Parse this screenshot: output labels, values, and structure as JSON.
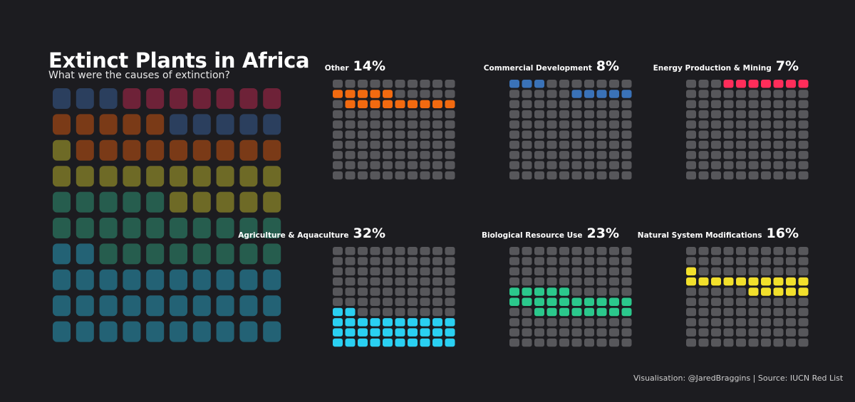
{
  "header": {
    "title": "Extinct Plants in Africa",
    "subtitle": "What were the causes of extinction?"
  },
  "footer": {
    "credit": "Visualisation: @JaredBraggins | Source: IUCN Red List"
  },
  "chart_data": [
    {
      "type": "waffle",
      "title": "Extinct Plants in Africa",
      "subtitle": "What were the causes of extinction?",
      "grid": "10 x 10",
      "categories": [
        {
          "name": "Other",
          "percent": 14,
          "color": "#f26a10",
          "muted": "#7a3a17"
        },
        {
          "name": "Commercial Development",
          "percent": 8,
          "color": "#3a72b8",
          "muted": "#2b3f5e"
        },
        {
          "name": "Energy Production & Mining",
          "percent": 7,
          "color": "#ff2d5a",
          "muted": "#6e2238"
        },
        {
          "name": "Agriculture & Aquaculture",
          "percent": 32,
          "color": "#2ad0f2",
          "muted": "#236275"
        },
        {
          "name": "Biological Resource Use",
          "percent": 23,
          "color": "#2bc88c",
          "muted": "#265d4e"
        },
        {
          "name": "Natural System Modifications",
          "percent": 16,
          "color": "#f2e02c",
          "muted": "#6e6a26"
        }
      ],
      "main_grid_rows": [
        [
          "Commercial Development",
          "Commercial Development",
          "Commercial Development",
          "Energy Production & Mining",
          "Energy Production & Mining",
          "Energy Production & Mining",
          "Energy Production & Mining",
          "Energy Production & Mining",
          "Energy Production & Mining",
          "Energy Production & Mining"
        ],
        [
          "Other",
          "Other",
          "Other",
          "Other",
          "Other",
          "Commercial Development",
          "Commercial Development",
          "Commercial Development",
          "Commercial Development",
          "Commercial Development"
        ],
        [
          "Natural System Modifications",
          "Other",
          "Other",
          "Other",
          "Other",
          "Other",
          "Other",
          "Other",
          "Other",
          "Other"
        ],
        [
          "Natural System Modifications",
          "Natural System Modifications",
          "Natural System Modifications",
          "Natural System Modifications",
          "Natural System Modifications",
          "Natural System Modifications",
          "Natural System Modifications",
          "Natural System Modifications",
          "Natural System Modifications",
          "Natural System Modifications"
        ],
        [
          "Biological Resource Use",
          "Biological Resource Use",
          "Biological Resource Use",
          "Biological Resource Use",
          "Biological Resource Use",
          "Natural System Modifications",
          "Natural System Modifications",
          "Natural System Modifications",
          "Natural System Modifications",
          "Natural System Modifications"
        ],
        [
          "Biological Resource Use",
          "Biological Resource Use",
          "Biological Resource Use",
          "Biological Resource Use",
          "Biological Resource Use",
          "Biological Resource Use",
          "Biological Resource Use",
          "Biological Resource Use",
          "Biological Resource Use",
          "Biological Resource Use"
        ],
        [
          "Agriculture & Aquaculture",
          "Agriculture & Aquaculture",
          "Biological Resource Use",
          "Biological Resource Use",
          "Biological Resource Use",
          "Biological Resource Use",
          "Biological Resource Use",
          "Biological Resource Use",
          "Biological Resource Use",
          "Biological Resource Use"
        ],
        [
          "Agriculture & Aquaculture",
          "Agriculture & Aquaculture",
          "Agriculture & Aquaculture",
          "Agriculture & Aquaculture",
          "Agriculture & Aquaculture",
          "Agriculture & Aquaculture",
          "Agriculture & Aquaculture",
          "Agriculture & Aquaculture",
          "Agriculture & Aquaculture",
          "Agriculture & Aquaculture"
        ],
        [
          "Agriculture & Aquaculture",
          "Agriculture & Aquaculture",
          "Agriculture & Aquaculture",
          "Agriculture & Aquaculture",
          "Agriculture & Aquaculture",
          "Agriculture & Aquaculture",
          "Agriculture & Aquaculture",
          "Agriculture & Aquaculture",
          "Agriculture & Aquaculture",
          "Agriculture & Aquaculture"
        ],
        [
          "Agriculture & Aquaculture",
          "Agriculture & Aquaculture",
          "Agriculture & Aquaculture",
          "Agriculture & Aquaculture",
          "Agriculture & Aquaculture",
          "Agriculture & Aquaculture",
          "Agriculture & Aquaculture",
          "Agriculture & Aquaculture",
          "Agriculture & Aquaculture",
          "Agriculture & Aquaculture"
        ]
      ],
      "small_multiples": [
        {
          "name": "Other",
          "percent": 14,
          "percent_label": "14%",
          "highlight_cells": [
            [
              1,
              0
            ],
            [
              1,
              1
            ],
            [
              1,
              2
            ],
            [
              1,
              3
            ],
            [
              1,
              4
            ],
            [
              2,
              1
            ],
            [
              2,
              2
            ],
            [
              2,
              3
            ],
            [
              2,
              4
            ],
            [
              2,
              5
            ],
            [
              2,
              6
            ],
            [
              2,
              7
            ],
            [
              2,
              8
            ],
            [
              2,
              9
            ]
          ]
        },
        {
          "name": "Commercial Development",
          "percent": 8,
          "percent_label": "8%",
          "highlight_cells": [
            [
              0,
              0
            ],
            [
              0,
              1
            ],
            [
              0,
              2
            ],
            [
              1,
              5
            ],
            [
              1,
              6
            ],
            [
              1,
              7
            ],
            [
              1,
              8
            ],
            [
              1,
              9
            ]
          ]
        },
        {
          "name": "Energy Production & Mining",
          "percent": 7,
          "percent_label": "7%",
          "highlight_cells": [
            [
              0,
              3
            ],
            [
              0,
              4
            ],
            [
              0,
              5
            ],
            [
              0,
              6
            ],
            [
              0,
              7
            ],
            [
              0,
              8
            ],
            [
              0,
              9
            ]
          ]
        },
        {
          "name": "Agriculture & Aquaculture",
          "percent": 32,
          "percent_label": "32%",
          "highlight_cells": [
            [
              6,
              0
            ],
            [
              6,
              1
            ],
            [
              7,
              0
            ],
            [
              7,
              1
            ],
            [
              7,
              2
            ],
            [
              7,
              3
            ],
            [
              7,
              4
            ],
            [
              7,
              5
            ],
            [
              7,
              6
            ],
            [
              7,
              7
            ],
            [
              7,
              8
            ],
            [
              7,
              9
            ],
            [
              8,
              0
            ],
            [
              8,
              1
            ],
            [
              8,
              2
            ],
            [
              8,
              3
            ],
            [
              8,
              4
            ],
            [
              8,
              5
            ],
            [
              8,
              6
            ],
            [
              8,
              7
            ],
            [
              8,
              8
            ],
            [
              8,
              9
            ],
            [
              9,
              0
            ],
            [
              9,
              1
            ],
            [
              9,
              2
            ],
            [
              9,
              3
            ],
            [
              9,
              4
            ],
            [
              9,
              5
            ],
            [
              9,
              6
            ],
            [
              9,
              7
            ],
            [
              9,
              8
            ],
            [
              9,
              9
            ]
          ]
        },
        {
          "name": "Biological Resource Use",
          "percent": 23,
          "percent_label": "23%",
          "highlight_cells": [
            [
              4,
              0
            ],
            [
              4,
              1
            ],
            [
              4,
              2
            ],
            [
              4,
              3
            ],
            [
              4,
              4
            ],
            [
              5,
              0
            ],
            [
              5,
              1
            ],
            [
              5,
              2
            ],
            [
              5,
              3
            ],
            [
              5,
              4
            ],
            [
              5,
              5
            ],
            [
              5,
              6
            ],
            [
              5,
              7
            ],
            [
              5,
              8
            ],
            [
              5,
              9
            ],
            [
              6,
              2
            ],
            [
              6,
              3
            ],
            [
              6,
              4
            ],
            [
              6,
              5
            ],
            [
              6,
              6
            ],
            [
              6,
              7
            ],
            [
              6,
              8
            ],
            [
              6,
              9
            ]
          ]
        },
        {
          "name": "Natural System Modifications",
          "percent": 16,
          "percent_label": "16%",
          "highlight_cells": [
            [
              2,
              0
            ],
            [
              3,
              0
            ],
            [
              3,
              1
            ],
            [
              3,
              2
            ],
            [
              3,
              3
            ],
            [
              3,
              4
            ],
            [
              3,
              5
            ],
            [
              3,
              6
            ],
            [
              3,
              7
            ],
            [
              3,
              8
            ],
            [
              3,
              9
            ],
            [
              4,
              5
            ],
            [
              4,
              6
            ],
            [
              4,
              7
            ],
            [
              4,
              8
            ],
            [
              4,
              9
            ]
          ]
        }
      ],
      "inactive_color": "#57575b",
      "background": "#1c1c20"
    }
  ]
}
